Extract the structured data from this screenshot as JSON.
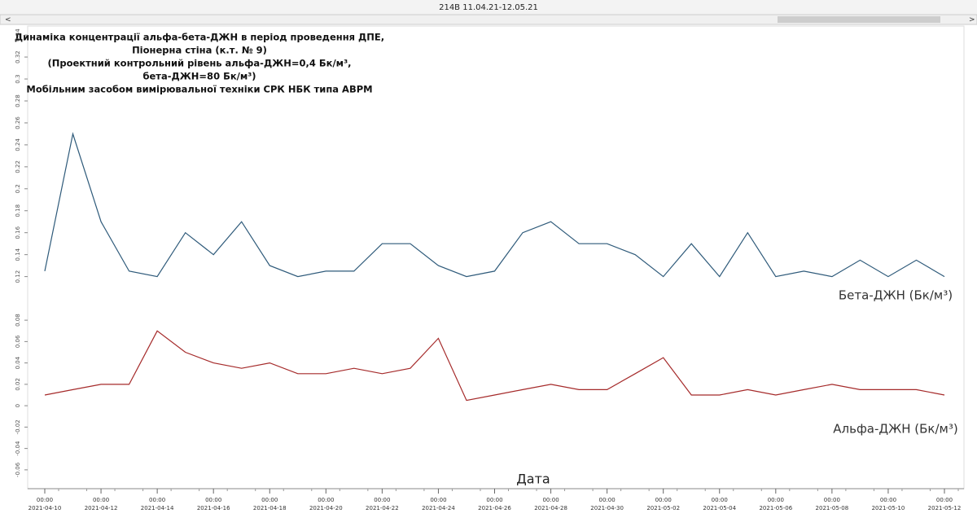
{
  "window": {
    "title": "214В 11.04.21-12.05.21"
  },
  "chart_data": {
    "type": "line",
    "title": [
      "Динаміка концентрації альфа-бета-ДЖН в період проведення ДПЕ,",
      "Піонерна стіна (к.т. № 9)",
      "(Проектний контрольний рівень альфа-ДЖН=0,4 Бк/м³,",
      "бета-ДЖН=80 Бк/м³)",
      "Мобільним засобом вимірювальної техніки СРК НБК типа АВРМ"
    ],
    "xlabel": "Дата",
    "x": [
      "2021-04-10",
      "2021-04-11",
      "2021-04-12",
      "2021-04-13",
      "2021-04-14",
      "2021-04-15",
      "2021-04-16",
      "2021-04-17",
      "2021-04-18",
      "2021-04-19",
      "2021-04-20",
      "2021-04-21",
      "2021-04-22",
      "2021-04-23",
      "2021-04-24",
      "2021-04-25",
      "2021-04-26",
      "2021-04-27",
      "2021-04-28",
      "2021-04-29",
      "2021-04-30",
      "2021-05-01",
      "2021-05-02",
      "2021-05-03",
      "2021-05-04",
      "2021-05-05",
      "2021-05-06",
      "2021-05-07",
      "2021-05-08",
      "2021-05-09",
      "2021-05-10",
      "2021-05-11",
      "2021-05-12"
    ],
    "xticks": [
      "2021-04-10",
      "2021-04-12",
      "2021-04-14",
      "2021-04-16",
      "2021-04-18",
      "2021-04-20",
      "2021-04-22",
      "2021-04-24",
      "2021-04-26",
      "2021-04-28",
      "2021-04-30",
      "2021-05-02",
      "2021-05-04",
      "2021-05-06",
      "2021-05-08",
      "2021-05-10",
      "2021-05-12"
    ],
    "xtick_time": "00:00",
    "series": [
      {
        "name": "Бета-ДЖН (Бк/м³)",
        "color": "#2e5a7a",
        "ylim": [
          0.116,
          0.346
        ],
        "yticks": [
          0.12,
          0.14,
          0.16,
          0.18,
          0.2,
          0.22,
          0.24,
          0.26,
          0.28,
          0.3,
          0.32,
          0.34
        ],
        "values": [
          0.125,
          0.25,
          0.17,
          0.125,
          0.12,
          0.16,
          0.14,
          0.17,
          0.13,
          0.12,
          0.125,
          0.125,
          0.15,
          0.15,
          0.13,
          0.12,
          0.125,
          0.16,
          0.17,
          0.15,
          0.15,
          0.14,
          0.12,
          0.15,
          0.12,
          0.16,
          0.12,
          0.125,
          0.12,
          0.135,
          0.12,
          0.135,
          0.12
        ]
      },
      {
        "name": "Альфа-ДЖН (Бк/м³)",
        "color": "#a52a2a",
        "ylim": [
          -0.07,
          0.09
        ],
        "yticks": [
          -0.06,
          -0.04,
          -0.02,
          0,
          0.02,
          0.04,
          0.06,
          0.08
        ],
        "values": [
          0.01,
          0.015,
          0.02,
          0.02,
          0.07,
          0.05,
          0.04,
          0.035,
          0.04,
          0.03,
          0.03,
          0.035,
          0.03,
          0.035,
          0.063,
          0.005,
          0.01,
          0.015,
          0.02,
          0.015,
          0.015,
          0.03,
          0.045,
          0.01,
          0.01,
          0.015,
          0.01,
          0.015,
          0.02,
          0.015,
          0.015,
          0.015,
          0.01
        ]
      }
    ]
  }
}
